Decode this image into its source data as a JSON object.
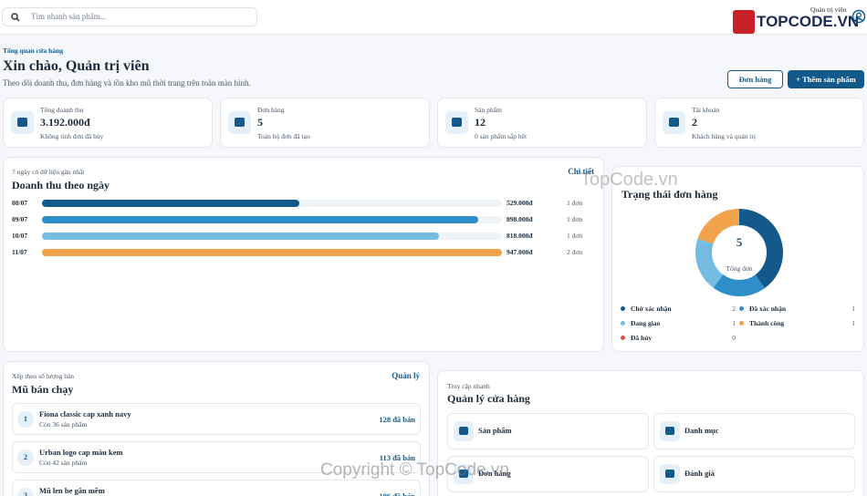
{
  "header": {
    "search_placeholder": "Tìm nhanh sản phẩm...",
    "user_role": "Quản trị viên",
    "logo": "TOPCODE.VN"
  },
  "page": {
    "breadcrumb": "Tổng quan cửa hàng",
    "title": "Xin chào, Quản trị viên",
    "subtitle": "Theo dõi doanh thu, đơn hàng và tồn kho mũ thời trang trên toàn màn hình.",
    "buttons": [
      "Đơn hàng",
      "Thêm sản phẩm"
    ]
  },
  "stats": [
    {
      "label": "Tổng doanh thu",
      "value": "3.192.000đ",
      "note": "Không tính đơn đã hủy"
    },
    {
      "label": "Đơn hàng",
      "value": "5",
      "note": "Toàn bộ đơn đã tạo"
    },
    {
      "label": "Sản phẩm",
      "value": "12",
      "note": "0 sản phẩm sắp hết"
    },
    {
      "label": "Tài khoản",
      "value": "2",
      "note": "Khách hàng và quản trị"
    }
  ],
  "revenue": {
    "caption": "7 ngày có dữ liệu gần nhất",
    "title": "Doanh thu theo ngày",
    "link": "Chi tiết",
    "rows": [
      {
        "date": "08/07",
        "amount": 529000,
        "amount_label": "529.000đ",
        "orders": "1 đơn",
        "color": "#135a8a"
      },
      {
        "date": "09/07",
        "amount": 898000,
        "amount_label": "898.000đ",
        "orders": "1 đơn",
        "color": "#2e8fc8"
      },
      {
        "date": "10/07",
        "amount": 818000,
        "amount_label": "818.000đ",
        "orders": "1 đơn",
        "color": "#74bde0"
      },
      {
        "date": "11/07",
        "amount": 947000,
        "amount_label": "947.000đ",
        "orders": "2 đơn",
        "color": "#f0a34a"
      }
    ]
  },
  "order_status": {
    "title": "Trạng thái đơn hàng",
    "total": 5,
    "total_label": "Tổng đơn",
    "statuses": [
      {
        "name": "Chờ xác nhận",
        "count": 2,
        "color": "#135a8a"
      },
      {
        "name": "Đã xác nhận",
        "count": 1,
        "color": "#2e8fc8"
      },
      {
        "name": "Đang giao",
        "count": 1,
        "color": "#74bde0"
      },
      {
        "name": "Thành công",
        "count": 1,
        "color": "#f0a34a"
      },
      {
        "name": "Đã hủy",
        "count": 0,
        "color": "#d9534f"
      }
    ]
  },
  "best_sellers": {
    "caption": "Xếp theo số lượng bán",
    "title": "Mũ bán chạy",
    "link": "Quản lý",
    "items": [
      {
        "rank": 1,
        "name": "Fiona classic cap xanh navy",
        "stock": "Còn 36 sản phẩm",
        "sold": "128 đã bán"
      },
      {
        "rank": 2,
        "name": "Urban logo cap màu kem",
        "stock": "Còn 42 sản phẩm",
        "sold": "113 đã bán"
      },
      {
        "rank": 3,
        "name": "Mũ len be gân mềm",
        "sold": "106 đã bán"
      }
    ]
  },
  "quick_access": {
    "caption": "Truy cập nhanh",
    "title": "Quản lý cửa hàng",
    "tiles": [
      "Sản phẩm",
      "Danh mục",
      "Đơn hàng",
      "Đánh giá"
    ]
  },
  "watermarks": [
    "TopCode.vn",
    "Copyright © TopCode.vn"
  ]
}
